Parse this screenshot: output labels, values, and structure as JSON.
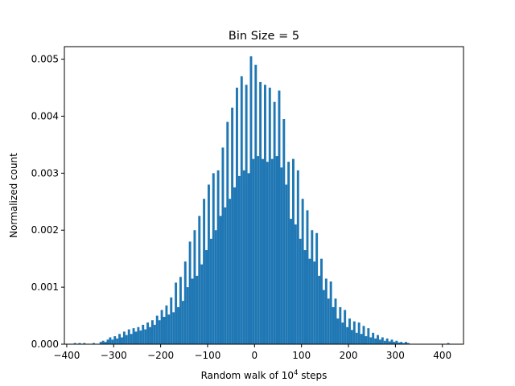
{
  "chart_data": {
    "type": "bar",
    "title": "Bin Size = 5",
    "xlabel": {
      "base": "Random walk of 10",
      "sup": "4",
      "rest": " steps"
    },
    "ylabel": "Normalized count",
    "xlim": [
      -405,
      445
    ],
    "ylim": [
      0,
      0.00522
    ],
    "xticks": [
      -400,
      -300,
      -200,
      -100,
      0,
      100,
      200,
      300,
      400
    ],
    "xtick_labels": [
      "−400",
      "−300",
      "−200",
      "−100",
      "0",
      "100",
      "200",
      "300",
      "400"
    ],
    "yticks": [
      0.0,
      0.001,
      0.002,
      0.003,
      0.004,
      0.005
    ],
    "ytick_labels": [
      "0.000",
      "0.001",
      "0.002",
      "0.003",
      "0.004",
      "0.005"
    ],
    "grid": false,
    "bar_color": "#1f77b4",
    "bin_width": 5,
    "bins": [
      [
        -385,
        2e-05
      ],
      [
        -375,
        2e-05
      ],
      [
        -365,
        2e-05
      ],
      [
        -345,
        2e-05
      ],
      [
        -330,
        4e-05
      ],
      [
        -325,
        6e-05
      ],
      [
        -320,
        4e-05
      ],
      [
        -315,
        8e-05
      ],
      [
        -310,
        0.00012
      ],
      [
        -305,
        8e-05
      ],
      [
        -300,
        0.00014
      ],
      [
        -295,
        0.0001
      ],
      [
        -290,
        0.00018
      ],
      [
        -285,
        0.00012
      ],
      [
        -280,
        0.00022
      ],
      [
        -275,
        0.00016
      ],
      [
        -270,
        0.00026
      ],
      [
        -265,
        0.00018
      ],
      [
        -260,
        0.00028
      ],
      [
        -255,
        0.00022
      ],
      [
        -250,
        0.0003
      ],
      [
        -245,
        0.00024
      ],
      [
        -240,
        0.00034
      ],
      [
        -235,
        0.00026
      ],
      [
        -230,
        0.00038
      ],
      [
        -225,
        0.0003
      ],
      [
        -220,
        0.00042
      ],
      [
        -215,
        0.00034
      ],
      [
        -210,
        0.0005
      ],
      [
        -205,
        0.00042
      ],
      [
        -200,
        0.0006
      ],
      [
        -195,
        0.00048
      ],
      [
        -190,
        0.00068
      ],
      [
        -185,
        0.00052
      ],
      [
        -180,
        0.00082
      ],
      [
        -175,
        0.00056
      ],
      [
        -170,
        0.00108
      ],
      [
        -165,
        0.00065
      ],
      [
        -160,
        0.00118
      ],
      [
        -155,
        0.00076
      ],
      [
        -150,
        0.00145
      ],
      [
        -145,
        0.001
      ],
      [
        -140,
        0.0018
      ],
      [
        -135,
        0.00115
      ],
      [
        -130,
        0.002
      ],
      [
        -125,
        0.0012
      ],
      [
        -120,
        0.00225
      ],
      [
        -115,
        0.0014
      ],
      [
        -110,
        0.00255
      ],
      [
        -105,
        0.00165
      ],
      [
        -100,
        0.0028
      ],
      [
        -95,
        0.00185
      ],
      [
        -90,
        0.003
      ],
      [
        -85,
        0.002
      ],
      [
        -80,
        0.00305
      ],
      [
        -75,
        0.00225
      ],
      [
        -70,
        0.00345
      ],
      [
        -65,
        0.0024
      ],
      [
        -60,
        0.0039
      ],
      [
        -55,
        0.00255
      ],
      [
        -50,
        0.00415
      ],
      [
        -45,
        0.00275
      ],
      [
        -40,
        0.0045
      ],
      [
        -35,
        0.00295
      ],
      [
        -30,
        0.0047
      ],
      [
        -25,
        0.00305
      ],
      [
        -20,
        0.00455
      ],
      [
        -15,
        0.003
      ],
      [
        -10,
        0.00505
      ],
      [
        -5,
        0.00325
      ],
      [
        0,
        0.0049
      ],
      [
        5,
        0.0033
      ],
      [
        10,
        0.0046
      ],
      [
        15,
        0.00325
      ],
      [
        20,
        0.00455
      ],
      [
        25,
        0.0032
      ],
      [
        30,
        0.0045
      ],
      [
        35,
        0.00325
      ],
      [
        40,
        0.00425
      ],
      [
        45,
        0.0033
      ],
      [
        50,
        0.00445
      ],
      [
        55,
        0.0031
      ],
      [
        60,
        0.00395
      ],
      [
        65,
        0.0028
      ],
      [
        70,
        0.0032
      ],
      [
        75,
        0.0022
      ],
      [
        80,
        0.00325
      ],
      [
        85,
        0.0021
      ],
      [
        90,
        0.00305
      ],
      [
        95,
        0.00185
      ],
      [
        100,
        0.00255
      ],
      [
        105,
        0.00165
      ],
      [
        110,
        0.00235
      ],
      [
        115,
        0.0015
      ],
      [
        120,
        0.002
      ],
      [
        125,
        0.00145
      ],
      [
        130,
        0.00195
      ],
      [
        135,
        0.0012
      ],
      [
        140,
        0.0015
      ],
      [
        145,
        0.00095
      ],
      [
        150,
        0.00115
      ],
      [
        155,
        0.0008
      ],
      [
        160,
        0.0011
      ],
      [
        165,
        0.00065
      ],
      [
        170,
        0.0008
      ],
      [
        175,
        0.00045
      ],
      [
        180,
        0.00065
      ],
      [
        185,
        0.00038
      ],
      [
        190,
        0.0006
      ],
      [
        195,
        0.0003
      ],
      [
        200,
        0.00045
      ],
      [
        205,
        0.00025
      ],
      [
        210,
        0.0004
      ],
      [
        215,
        0.0002
      ],
      [
        220,
        0.00038
      ],
      [
        225,
        0.00018
      ],
      [
        230,
        0.00032
      ],
      [
        235,
        0.00014
      ],
      [
        240,
        0.00028
      ],
      [
        245,
        0.00012
      ],
      [
        250,
        0.0002
      ],
      [
        255,
        0.0001
      ],
      [
        260,
        0.00016
      ],
      [
        265,
        8e-05
      ],
      [
        270,
        0.00012
      ],
      [
        275,
        6e-05
      ],
      [
        280,
        0.0001
      ],
      [
        285,
        5e-05
      ],
      [
        290,
        8e-05
      ],
      [
        295,
        4e-05
      ],
      [
        300,
        6e-05
      ],
      [
        305,
        3e-05
      ],
      [
        310,
        4e-05
      ],
      [
        315,
        2e-05
      ],
      [
        320,
        4e-05
      ],
      [
        325,
        2e-05
      ],
      [
        410,
        2e-05
      ]
    ]
  }
}
